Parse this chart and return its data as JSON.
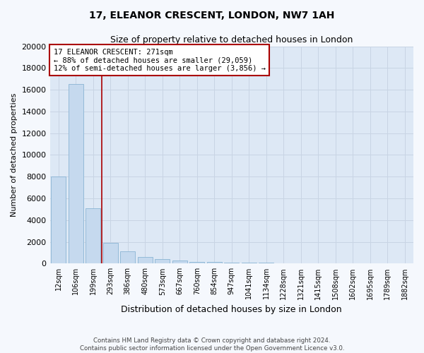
{
  "title": "17, ELEANOR CRESCENT, LONDON, NW7 1AH",
  "subtitle": "Size of property relative to detached houses in London",
  "xlabel": "Distribution of detached houses by size in London",
  "ylabel": "Number of detached properties",
  "categories": [
    "12sqm",
    "106sqm",
    "199sqm",
    "293sqm",
    "386sqm",
    "480sqm",
    "573sqm",
    "667sqm",
    "760sqm",
    "854sqm",
    "947sqm",
    "1041sqm",
    "1134sqm",
    "1228sqm",
    "1321sqm",
    "1415sqm",
    "1508sqm",
    "1602sqm",
    "1695sqm",
    "1789sqm",
    "1882sqm"
  ],
  "values": [
    8000,
    16500,
    5100,
    1900,
    1100,
    600,
    400,
    280,
    180,
    130,
    100,
    80,
    60,
    50,
    45,
    40,
    35,
    30,
    25,
    20,
    15
  ],
  "bar_color": "#c5d9ee",
  "bar_edge_color": "#8ab4d4",
  "red_line_index": 2.5,
  "red_line_color": "#aa0000",
  "annotation_text": "17 ELEANOR CRESCENT: 271sqm\n← 88% of detached houses are smaller (29,059)\n12% of semi-detached houses are larger (3,856) →",
  "annotation_box_color": "#ffffff",
  "annotation_box_edge": "#aa0000",
  "ylim": [
    0,
    20000
  ],
  "yticks": [
    0,
    2000,
    4000,
    6000,
    8000,
    10000,
    12000,
    14000,
    16000,
    18000,
    20000
  ],
  "bg_color": "#dde8f5",
  "fig_bg_color": "#f5f8fd",
  "footer": "Contains HM Land Registry data © Crown copyright and database right 2024.\nContains public sector information licensed under the Open Government Licence v3.0.",
  "title_fontsize": 10,
  "subtitle_fontsize": 9,
  "grid_color": "#c8d4e4"
}
